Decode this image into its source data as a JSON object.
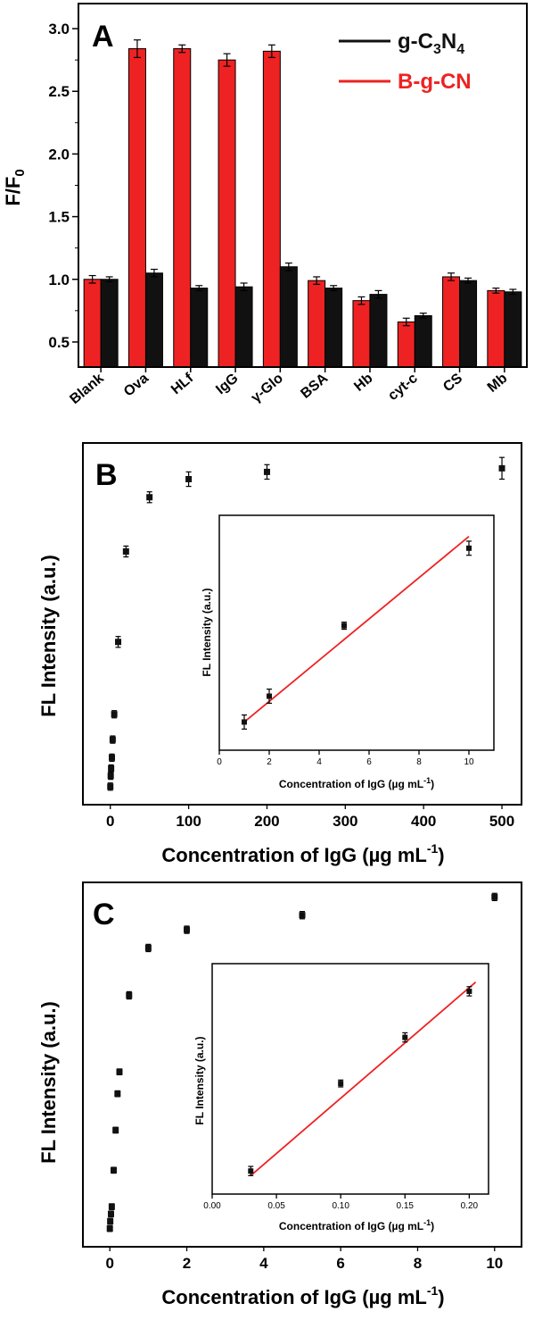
{
  "colors": {
    "red": "#ee2222",
    "black": "#111111"
  },
  "chart_data": [
    {
      "type": "bar",
      "panel": "A",
      "ylabel": "F/F",
      "ylabel_sub": "0",
      "ylim": [
        0.3,
        3.2
      ],
      "yticks": [
        0.5,
        1.0,
        1.5,
        2.0,
        2.5,
        3.0
      ],
      "ytick_labels": [
        "0.5",
        "1.0",
        "1.5",
        "2.0",
        "2.5",
        "3.0"
      ],
      "categories": [
        "Blank",
        "Ova",
        "HLf",
        "IgG",
        "γ-Glo",
        "BSA",
        "Hb",
        "cyt-c",
        "CS",
        "Mb"
      ],
      "legend_position": "top-right",
      "legend": {
        "black_main": "g-C",
        "black_sub1": "3",
        "black_mid": "N",
        "black_sub2": "4",
        "red": "B-g-CN"
      },
      "series": [
        {
          "name": "B-g-CN",
          "color": "#ee2222",
          "values": [
            1.0,
            2.84,
            2.84,
            2.75,
            2.82,
            0.99,
            0.83,
            0.66,
            1.02,
            0.91
          ],
          "errors": [
            0.03,
            0.07,
            0.03,
            0.05,
            0.05,
            0.03,
            0.03,
            0.03,
            0.03,
            0.02
          ]
        },
        {
          "name": "g-C3N4",
          "color": "#111111",
          "values": [
            1.0,
            1.05,
            0.93,
            0.94,
            1.1,
            0.93,
            0.88,
            0.71,
            0.99,
            0.9
          ],
          "errors": [
            0.02,
            0.03,
            0.02,
            0.03,
            0.03,
            0.02,
            0.03,
            0.02,
            0.02,
            0.02
          ]
        }
      ]
    },
    {
      "type": "scatter",
      "panel": "B",
      "xlabel": "Concentration of IgG (µg mL",
      "xlabel_sup": "-1",
      "xlabel_end": ")",
      "ylabel": "FL Intensity (a.u.)",
      "xlim": [
        -35,
        525
      ],
      "xticks": [
        0,
        100,
        200,
        300,
        400,
        500
      ],
      "xtick_labels": [
        "0",
        "100",
        "200",
        "300",
        "400",
        "500"
      ],
      "ylim": [
        0,
        100
      ],
      "x": [
        0,
        0.5,
        1,
        2,
        3,
        5,
        10,
        20,
        50,
        100,
        200,
        500
      ],
      "y": [
        5,
        8,
        10,
        13,
        18,
        25,
        45,
        70,
        85,
        90,
        92,
        93
      ],
      "errors": [
        1,
        1,
        1,
        1,
        1,
        1,
        1.5,
        1.5,
        1.5,
        2,
        2,
        3
      ],
      "inset": {
        "type": "scatter_with_fit",
        "xlabel": "Concentration of IgG (µg mL",
        "xlabel_sup": "-1",
        "xlabel_end": ")",
        "ylabel": "FL Intensity (a.u.)",
        "xlim": [
          0,
          11
        ],
        "xticks": [
          0,
          2,
          4,
          6,
          8,
          10
        ],
        "xtick_labels": [
          "0",
          "2",
          "4",
          "6",
          "8",
          "10"
        ],
        "ylim": [
          0,
          100
        ],
        "x": [
          1,
          2,
          5,
          10
        ],
        "y": [
          12,
          23,
          53,
          86
        ],
        "errors": [
          3,
          3,
          1.5,
          3
        ],
        "fit": {
          "x": [
            1,
            10
          ],
          "y": [
            12,
            91
          ],
          "color": "#ee2222"
        }
      }
    },
    {
      "type": "scatter",
      "panel": "C",
      "xlabel": "Concentration of IgG (µg mL",
      "xlabel_sup": "-1",
      "xlabel_end": ")",
      "ylabel": "FL Intensity (a.u.)",
      "xlim": [
        -0.7,
        10.7
      ],
      "xticks": [
        0,
        2,
        4,
        6,
        8,
        10
      ],
      "xtick_labels": [
        "0",
        "2",
        "4",
        "6",
        "8",
        "10"
      ],
      "ylim": [
        0,
        100
      ],
      "x": [
        0,
        0.01,
        0.03,
        0.05,
        0.1,
        0.15,
        0.2,
        0.25,
        0.5,
        1,
        2,
        5,
        10
      ],
      "y": [
        5,
        7,
        9,
        11,
        21,
        32,
        42,
        48,
        69,
        82,
        87,
        91,
        96
      ],
      "errors": [
        0.8,
        0.8,
        0.8,
        0.8,
        0.8,
        0.8,
        0.8,
        0.8,
        1,
        1,
        1,
        1,
        1
      ],
      "inset": {
        "type": "scatter_with_fit",
        "xlabel": "Concentration of IgG (µg mL",
        "xlabel_sup": "-1",
        "xlabel_end": ")",
        "ylabel": "FL Intensity (a.u.)",
        "xlim": [
          0,
          0.215
        ],
        "xticks": [
          0.0,
          0.05,
          0.1,
          0.15,
          0.2
        ],
        "xtick_labels": [
          "0.00",
          "0.05",
          "0.10",
          "0.15",
          "0.20"
        ],
        "ylim": [
          0,
          100
        ],
        "x": [
          0.03,
          0.1,
          0.15,
          0.2
        ],
        "y": [
          10,
          48,
          68,
          88
        ],
        "errors": [
          2,
          1.5,
          2,
          2
        ],
        "fit": {
          "x": [
            0.03,
            0.205
          ],
          "y": [
            8,
            92
          ],
          "color": "#ee2222"
        }
      }
    }
  ]
}
